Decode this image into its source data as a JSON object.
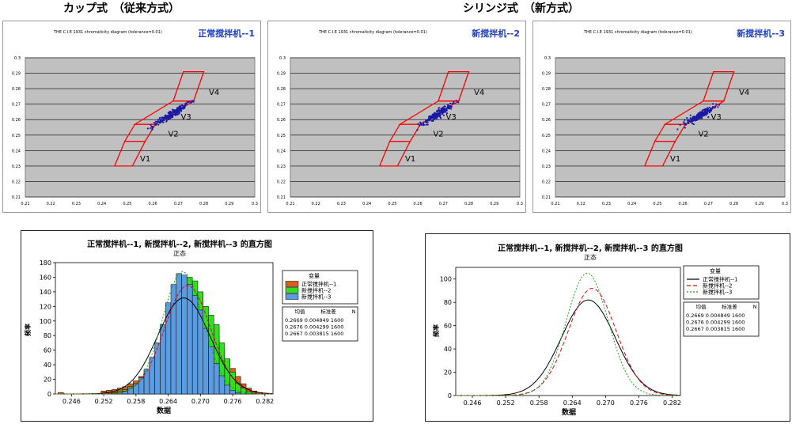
{
  "headers": {
    "left": "カップ式　（従来方式）",
    "right": "シリンジ式　（新方式）"
  },
  "scatter_panels": [
    {
      "title": "THE C.I.E 1931 chromaticity diagram (tolerance=0.01)",
      "label": "正常搅拌机--1"
    },
    {
      "title": "THE C.I.E 1931 chromaticity diagram (tolerance=0.01)",
      "label": "新搅拌机--2"
    },
    {
      "title": "THE C.I.E 1931 chromaticity diagram (tolerance=0.01)",
      "label": "新搅拌机--3"
    }
  ],
  "colors": {
    "plot_bg": "#c0c0c0",
    "box_red": "#ff0000",
    "points": "#1a1aa6",
    "label_blue": "#1f3fc4",
    "hist1": "#d4611c",
    "hist2": "#33dd22",
    "hist3": "#5b9be0"
  },
  "chart_data": [
    {
      "type": "scatter",
      "title": "THE C.I.E 1931 chromaticity diagram (tolerance=0.01)",
      "series": [
        {
          "name": "正常搅拌机--1",
          "center": [
            0.2669,
            0.2669
          ],
          "spread": 0.0048
        }
      ],
      "xlim": [
        0.21,
        0.3
      ],
      "ylim": [
        0.21,
        0.3
      ],
      "xticks": [
        0.21,
        0.22,
        0.23,
        0.24,
        0.25,
        0.26,
        0.27,
        0.28,
        0.29,
        0.3
      ],
      "yticks": [
        0.21,
        0.22,
        0.23,
        0.24,
        0.25,
        0.26,
        0.27,
        0.28,
        0.29,
        0.3
      ],
      "bins": [
        "V1",
        "V2",
        "V3",
        "V4"
      ],
      "grid": true
    },
    {
      "type": "scatter",
      "title": "THE C.I.E 1931 chromaticity diagram (tolerance=0.01)",
      "series": [
        {
          "name": "新搅拌机--2",
          "center": [
            0.2676,
            0.2676
          ],
          "spread": 0.0043
        }
      ],
      "xlim": [
        0.21,
        0.3
      ],
      "ylim": [
        0.21,
        0.3
      ],
      "xticks": [
        0.21,
        0.22,
        0.23,
        0.24,
        0.25,
        0.26,
        0.27,
        0.28,
        0.29,
        0.3
      ],
      "yticks": [
        0.21,
        0.22,
        0.23,
        0.24,
        0.25,
        0.26,
        0.27,
        0.28,
        0.29,
        0.3
      ],
      "bins": [
        "V1",
        "V2",
        "V3",
        "V4"
      ],
      "grid": true
    },
    {
      "type": "scatter",
      "title": "THE C.I.E 1931 chromaticity diagram (tolerance=0.01)",
      "series": [
        {
          "name": "新搅拌机--3",
          "center": [
            0.2667,
            0.2667
          ],
          "spread": 0.0038
        }
      ],
      "xlim": [
        0.21,
        0.3
      ],
      "ylim": [
        0.21,
        0.3
      ],
      "xticks": [
        0.21,
        0.22,
        0.23,
        0.24,
        0.25,
        0.26,
        0.27,
        0.28,
        0.29,
        0.3
      ],
      "yticks": [
        0.21,
        0.22,
        0.23,
        0.24,
        0.25,
        0.26,
        0.27,
        0.28,
        0.29,
        0.3
      ],
      "bins": [
        "V1",
        "V2",
        "V3",
        "V4"
      ],
      "grid": true
    },
    {
      "type": "bar",
      "title": "正常搅拌机--1, 新搅拌机--2, 新搅拌机--3 的直方图",
      "subtitle": "正态",
      "xlabel": "数据",
      "ylabel": "频率",
      "xlim": [
        0.243,
        0.2835
      ],
      "ylim": [
        0,
        180
      ],
      "xticks": [
        "0.246",
        "0.252",
        "0.258",
        "0.264",
        "0.270",
        "0.276",
        "0.282"
      ],
      "yticks": [
        0,
        20,
        40,
        60,
        80,
        100,
        120,
        140,
        160,
        180
      ],
      "bin_width": 0.001,
      "bin_centers": [
        0.244,
        0.245,
        0.246,
        0.247,
        0.248,
        0.249,
        0.25,
        0.251,
        0.252,
        0.253,
        0.254,
        0.255,
        0.256,
        0.257,
        0.258,
        0.259,
        0.26,
        0.261,
        0.262,
        0.263,
        0.264,
        0.265,
        0.266,
        0.267,
        0.268,
        0.269,
        0.27,
        0.271,
        0.272,
        0.273,
        0.274,
        0.275,
        0.276,
        0.277,
        0.278,
        0.279,
        0.28,
        0.281,
        0.282
      ],
      "series": [
        {
          "name": "正常搅拌机--1",
          "values": [
            2,
            0,
            0,
            0,
            0,
            0,
            0,
            0,
            4,
            5,
            6,
            8,
            10,
            14,
            18,
            24,
            32,
            42,
            60,
            76,
            95,
            110,
            125,
            132,
            135,
            130,
            120,
            105,
            92,
            76,
            62,
            48,
            35,
            24,
            14,
            8,
            4,
            2,
            1
          ]
        },
        {
          "name": "新搅拌机--2",
          "values": [
            0,
            0,
            0,
            0,
            0,
            0,
            0,
            0,
            0,
            1,
            2,
            4,
            6,
            10,
            14,
            20,
            28,
            38,
            55,
            72,
            92,
            115,
            135,
            150,
            160,
            155,
            140,
            120,
            108,
            95,
            70,
            48,
            30,
            15,
            8,
            3,
            1,
            0,
            0
          ]
        },
        {
          "name": "新搅拌机--3",
          "values": [
            0,
            0,
            0,
            0,
            0,
            0,
            0,
            0,
            0,
            0,
            0,
            2,
            4,
            8,
            14,
            22,
            34,
            50,
            70,
            95,
            125,
            150,
            165,
            163,
            150,
            135,
            115,
            90,
            65,
            42,
            25,
            12,
            5,
            2,
            0,
            0,
            0,
            0,
            0
          ]
        }
      ],
      "curves": [
        {
          "name": "正常搅拌机--1",
          "mean": 0.2669,
          "stdev": 0.004849,
          "n": 1600
        },
        {
          "name": "新搅拌机--2",
          "mean": 0.2676,
          "stdev": 0.004299,
          "n": 1600
        },
        {
          "name": "新搅拌机--3",
          "mean": 0.2667,
          "stdev": 0.003815,
          "n": 1600
        }
      ],
      "legend_title": "变量",
      "stats_header": [
        "均值",
        "标准差",
        "N"
      ],
      "stats_rows": [
        "0.2669 0.004849 1600",
        "0.2676 0.004299 1600",
        "0.2667 0.003815 1600"
      ]
    },
    {
      "type": "line",
      "title": "正常搅拌机--1, 新搅拌机--2, 新搅拌机--3 的直方图",
      "subtitle": "正态",
      "xlabel": "数据",
      "ylabel": "频率",
      "xlim": [
        0.243,
        0.2835
      ],
      "ylim": [
        0,
        110
      ],
      "xticks": [
        "0.246",
        "0.252",
        "0.258",
        "0.264",
        "0.270",
        "0.276",
        "0.282"
      ],
      "yticks": [
        0,
        20,
        40,
        60,
        80,
        100
      ],
      "series": [
        {
          "name": "正常搅拌机--1",
          "mean": 0.2669,
          "stdev": 0.004849,
          "peak": 82
        },
        {
          "name": "新搅拌机--2",
          "mean": 0.2676,
          "stdev": 0.004299,
          "peak": 92
        },
        {
          "name": "新搅拌机--3",
          "mean": 0.2667,
          "stdev": 0.003815,
          "peak": 105
        }
      ],
      "legend_title": "变量",
      "stats_header": [
        "均值",
        "标准差",
        "N"
      ],
      "stats_rows": [
        "0.2669 0.004849 1600",
        "0.2676 0.004299 1600",
        "0.2667 0.003815 1600"
      ]
    }
  ]
}
